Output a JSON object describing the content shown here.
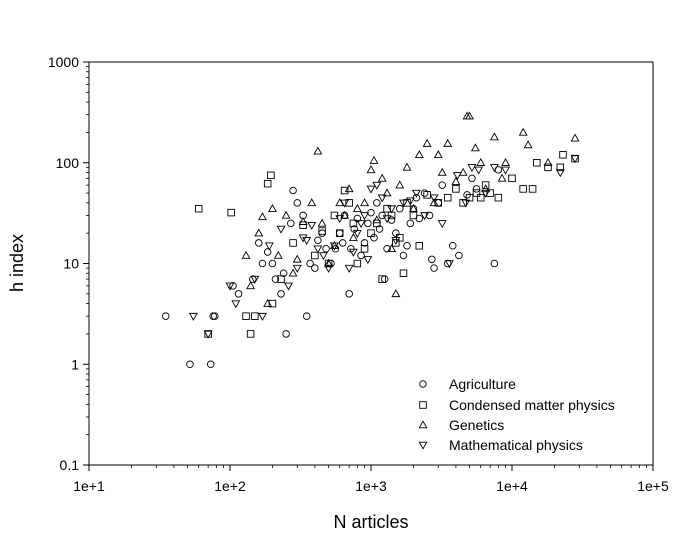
{
  "chart_data": {
    "type": "scatter",
    "title": "",
    "xlabel": "N articles",
    "ylabel": "h index",
    "xscale": "log",
    "yscale": "log",
    "xlim": [
      10,
      100000
    ],
    "ylim": [
      0.1,
      1000
    ],
    "x_ticks": [
      10,
      100,
      1000,
      10000,
      100000
    ],
    "x_tick_labels": [
      "1e+1",
      "1e+2",
      "1e+3",
      "1e+4",
      "1e+5"
    ],
    "y_ticks": [
      0.1,
      1,
      10,
      100,
      1000
    ],
    "y_tick_labels": [
      "0.1",
      "1",
      "10",
      "100",
      "1000"
    ],
    "grid": false,
    "legend_position": "bottom-right",
    "series": [
      {
        "name": "Agriculture",
        "marker": "circle",
        "points": [
          [
            35,
            3
          ],
          [
            52,
            1
          ],
          [
            73,
            1
          ],
          [
            76,
            3
          ],
          [
            78,
            3
          ],
          [
            105,
            6
          ],
          [
            115,
            5
          ],
          [
            145,
            7
          ],
          [
            160,
            16
          ],
          [
            170,
            10
          ],
          [
            185,
            13
          ],
          [
            200,
            10
          ],
          [
            210,
            7
          ],
          [
            230,
            5
          ],
          [
            240,
            8
          ],
          [
            250,
            2
          ],
          [
            270,
            25
          ],
          [
            280,
            53
          ],
          [
            300,
            40
          ],
          [
            330,
            30
          ],
          [
            350,
            3
          ],
          [
            370,
            10
          ],
          [
            400,
            9
          ],
          [
            420,
            17
          ],
          [
            450,
            20
          ],
          [
            480,
            14
          ],
          [
            520,
            10
          ],
          [
            560,
            14
          ],
          [
            600,
            20
          ],
          [
            630,
            16
          ],
          [
            650,
            30
          ],
          [
            700,
            5
          ],
          [
            720,
            14
          ],
          [
            760,
            22
          ],
          [
            800,
            28
          ],
          [
            850,
            12
          ],
          [
            900,
            16
          ],
          [
            950,
            25
          ],
          [
            1000,
            32
          ],
          [
            1050,
            18
          ],
          [
            1100,
            40
          ],
          [
            1150,
            22
          ],
          [
            1200,
            30
          ],
          [
            1250,
            7
          ],
          [
            1300,
            14
          ],
          [
            1400,
            27
          ],
          [
            1500,
            20
          ],
          [
            1600,
            35
          ],
          [
            1700,
            12
          ],
          [
            1800,
            15
          ],
          [
            1900,
            25
          ],
          [
            2000,
            35
          ],
          [
            2100,
            45
          ],
          [
            2200,
            28
          ],
          [
            2400,
            50
          ],
          [
            2600,
            30
          ],
          [
            2700,
            11
          ],
          [
            2800,
            9
          ],
          [
            3000,
            40
          ],
          [
            3200,
            60
          ],
          [
            3500,
            10
          ],
          [
            3800,
            15
          ],
          [
            4200,
            12
          ],
          [
            4800,
            48
          ],
          [
            5200,
            70
          ],
          [
            5600,
            55
          ],
          [
            7500,
            10
          ],
          [
            8000,
            85
          ]
        ]
      },
      {
        "name": "Condensed matter physics",
        "marker": "square",
        "points": [
          [
            60,
            35
          ],
          [
            70,
            2
          ],
          [
            102,
            32
          ],
          [
            130,
            3
          ],
          [
            140,
            2
          ],
          [
            150,
            3
          ],
          [
            185,
            62
          ],
          [
            195,
            75
          ],
          [
            200,
            4
          ],
          [
            230,
            7
          ],
          [
            280,
            16
          ],
          [
            330,
            24
          ],
          [
            400,
            12
          ],
          [
            450,
            21
          ],
          [
            500,
            10
          ],
          [
            550,
            30
          ],
          [
            600,
            20
          ],
          [
            650,
            53
          ],
          [
            700,
            40
          ],
          [
            750,
            25
          ],
          [
            800,
            10
          ],
          [
            900,
            14
          ],
          [
            1000,
            20
          ],
          [
            1100,
            25
          ],
          [
            1200,
            7
          ],
          [
            1300,
            35
          ],
          [
            1400,
            30
          ],
          [
            1500,
            16
          ],
          [
            1600,
            18
          ],
          [
            1700,
            8
          ],
          [
            1800,
            40
          ],
          [
            2000,
            30
          ],
          [
            2200,
            15
          ],
          [
            2500,
            48
          ],
          [
            3000,
            40
          ],
          [
            3500,
            45
          ],
          [
            4000,
            55
          ],
          [
            4500,
            40
          ],
          [
            5000,
            45
          ],
          [
            5600,
            50
          ],
          [
            6000,
            45
          ],
          [
            6500,
            60
          ],
          [
            7000,
            50
          ],
          [
            8000,
            45
          ],
          [
            10000,
            70
          ],
          [
            12000,
            55
          ],
          [
            14000,
            55
          ],
          [
            15000,
            100
          ],
          [
            18000,
            90
          ],
          [
            22000,
            90
          ],
          [
            23000,
            120
          ],
          [
            28000,
            110
          ]
        ]
      },
      {
        "name": "Genetics",
        "marker": "triangle-up",
        "points": [
          [
            130,
            12
          ],
          [
            140,
            6
          ],
          [
            160,
            20
          ],
          [
            170,
            29
          ],
          [
            185,
            4
          ],
          [
            200,
            35
          ],
          [
            220,
            12
          ],
          [
            250,
            30
          ],
          [
            280,
            8
          ],
          [
            300,
            11
          ],
          [
            330,
            26
          ],
          [
            380,
            40
          ],
          [
            420,
            130
          ],
          [
            450,
            25
          ],
          [
            500,
            10
          ],
          [
            550,
            15
          ],
          [
            600,
            40
          ],
          [
            650,
            30
          ],
          [
            700,
            55
          ],
          [
            750,
            18
          ],
          [
            800,
            35
          ],
          [
            900,
            40
          ],
          [
            1000,
            85
          ],
          [
            1050,
            105
          ],
          [
            1100,
            27
          ],
          [
            1200,
            70
          ],
          [
            1300,
            50
          ],
          [
            1400,
            14
          ],
          [
            1500,
            5
          ],
          [
            1600,
            60
          ],
          [
            1800,
            90
          ],
          [
            2000,
            35
          ],
          [
            2200,
            120
          ],
          [
            2500,
            155
          ],
          [
            2800,
            40
          ],
          [
            3000,
            120
          ],
          [
            3200,
            80
          ],
          [
            3500,
            155
          ],
          [
            4000,
            65
          ],
          [
            4500,
            80
          ],
          [
            4800,
            290
          ],
          [
            5000,
            290
          ],
          [
            5500,
            140
          ],
          [
            6000,
            100
          ],
          [
            6500,
            55
          ],
          [
            7500,
            180
          ],
          [
            8500,
            70
          ],
          [
            9000,
            100
          ],
          [
            12000,
            200
          ],
          [
            13000,
            150
          ],
          [
            18000,
            100
          ],
          [
            28000,
            175
          ]
        ]
      },
      {
        "name": "Mathematical physics",
        "marker": "triangle-down",
        "points": [
          [
            55,
            3
          ],
          [
            70,
            2
          ],
          [
            100,
            6
          ],
          [
            110,
            4
          ],
          [
            150,
            7
          ],
          [
            170,
            3
          ],
          [
            190,
            15
          ],
          [
            230,
            22
          ],
          [
            260,
            6
          ],
          [
            300,
            9
          ],
          [
            330,
            18
          ],
          [
            350,
            17
          ],
          [
            380,
            24
          ],
          [
            420,
            14
          ],
          [
            460,
            12
          ],
          [
            500,
            9
          ],
          [
            550,
            15
          ],
          [
            600,
            28
          ],
          [
            650,
            40
          ],
          [
            700,
            9
          ],
          [
            750,
            13
          ],
          [
            800,
            20
          ],
          [
            850,
            25
          ],
          [
            900,
            30
          ],
          [
            950,
            11
          ],
          [
            1000,
            55
          ],
          [
            1100,
            60
          ],
          [
            1200,
            45
          ],
          [
            1300,
            28
          ],
          [
            1400,
            35
          ],
          [
            1500,
            17
          ],
          [
            1700,
            40
          ],
          [
            1900,
            42
          ],
          [
            2100,
            50
          ],
          [
            2400,
            30
          ],
          [
            2800,
            45
          ],
          [
            3200,
            25
          ],
          [
            3600,
            10
          ],
          [
            4100,
            75
          ],
          [
            4700,
            40
          ],
          [
            5200,
            90
          ],
          [
            5800,
            85
          ],
          [
            6500,
            50
          ],
          [
            7500,
            90
          ],
          [
            9000,
            85
          ],
          [
            22000,
            80
          ],
          [
            28000,
            110
          ]
        ]
      }
    ]
  }
}
